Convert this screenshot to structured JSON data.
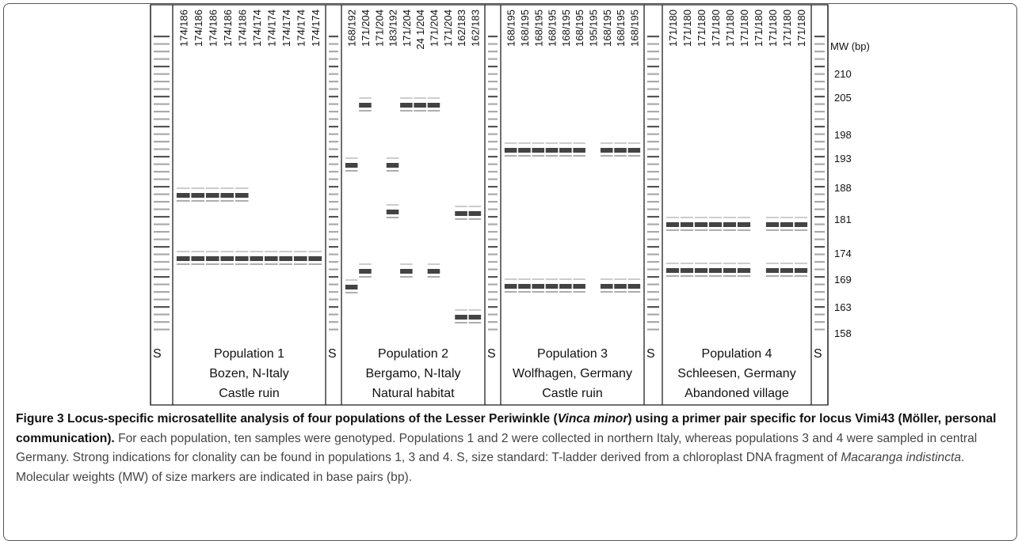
{
  "figure": {
    "panels": [
      {
        "size_standard": "S",
        "samples": [
          "174/186",
          "174/186",
          "174/186",
          "174/186",
          "174/186",
          "174/174",
          "174/174",
          "174/174",
          "174/174",
          "174/174"
        ],
        "population": "Population 1",
        "location": "Bozen, N-Italy",
        "habitat": "Castle ruin"
      },
      {
        "size_standard": "S",
        "samples": [
          "168/192",
          "171/204",
          "171/204",
          "183/192",
          "171/204",
          "24 1/204",
          "171/204",
          "171/204",
          "162/183",
          "162/183"
        ],
        "population": "Population 2",
        "location": "Bergamo, N-Italy",
        "habitat": "Natural habitat"
      },
      {
        "size_standard": "S",
        "samples": [
          "168/195",
          "168/195",
          "168/195",
          "168/195",
          "168/195",
          "168/195",
          "195/195",
          "168/195",
          "168/195",
          "168/195"
        ],
        "population": "Population 3",
        "location": "Wolfhagen, Germany",
        "habitat": "Castle ruin"
      },
      {
        "size_standard": "S",
        "samples": [
          "171/180",
          "171/180",
          "171/180",
          "171/180",
          "171/180",
          "171/180",
          "171/180",
          "171/180",
          "171/180",
          "171/180"
        ],
        "population": "Population 4",
        "location": "Schleesen, Germany",
        "habitat": "Abandoned village"
      }
    ],
    "final_standard": "S",
    "mw_title": "MW (bp)",
    "mw_labels": [
      210,
      205,
      198,
      193,
      188,
      181,
      174,
      169,
      163,
      158
    ],
    "caption": {
      "label": "Figure 3",
      "title": [
        "Locus-specific microsatellite analysis of four populations of the Lesser Periwinkle (",
        "Vinca minor",
        ") using a primer pair specific for locus Vimi43 (Möller, personal communication)."
      ],
      "body": [
        "For each population, ten samples were genotyped. Populations 1 and 2 were collected in northern Italy, whereas populations 3 and 4 were sampled in central Germany. Strong indications for clonality can be found in populations 1, 3 and 4. S, size standard: T-ladder derived from a chloroplast DNA fragment of ",
        "Macaranga indistincta",
        ". Molecular weights (MW) of size markers are indicated in base pairs (bp)."
      ]
    }
  }
}
